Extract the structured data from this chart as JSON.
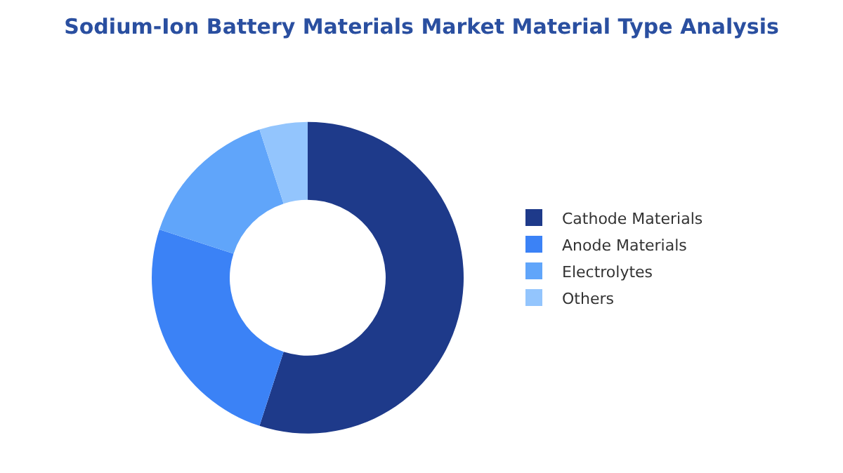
{
  "chart_data": {
    "type": "donut",
    "title": "Sodium-Ion Battery Materials Market Material Type Analysis",
    "categories": [
      "Cathode Materials",
      "Anode Materials",
      "Electrolytes",
      "Others"
    ],
    "values": [
      55,
      25,
      15,
      5
    ],
    "colors": [
      "#1e3a8a",
      "#3b82f6",
      "#60a5fa",
      "#93c5fd"
    ],
    "legend": "right"
  }
}
